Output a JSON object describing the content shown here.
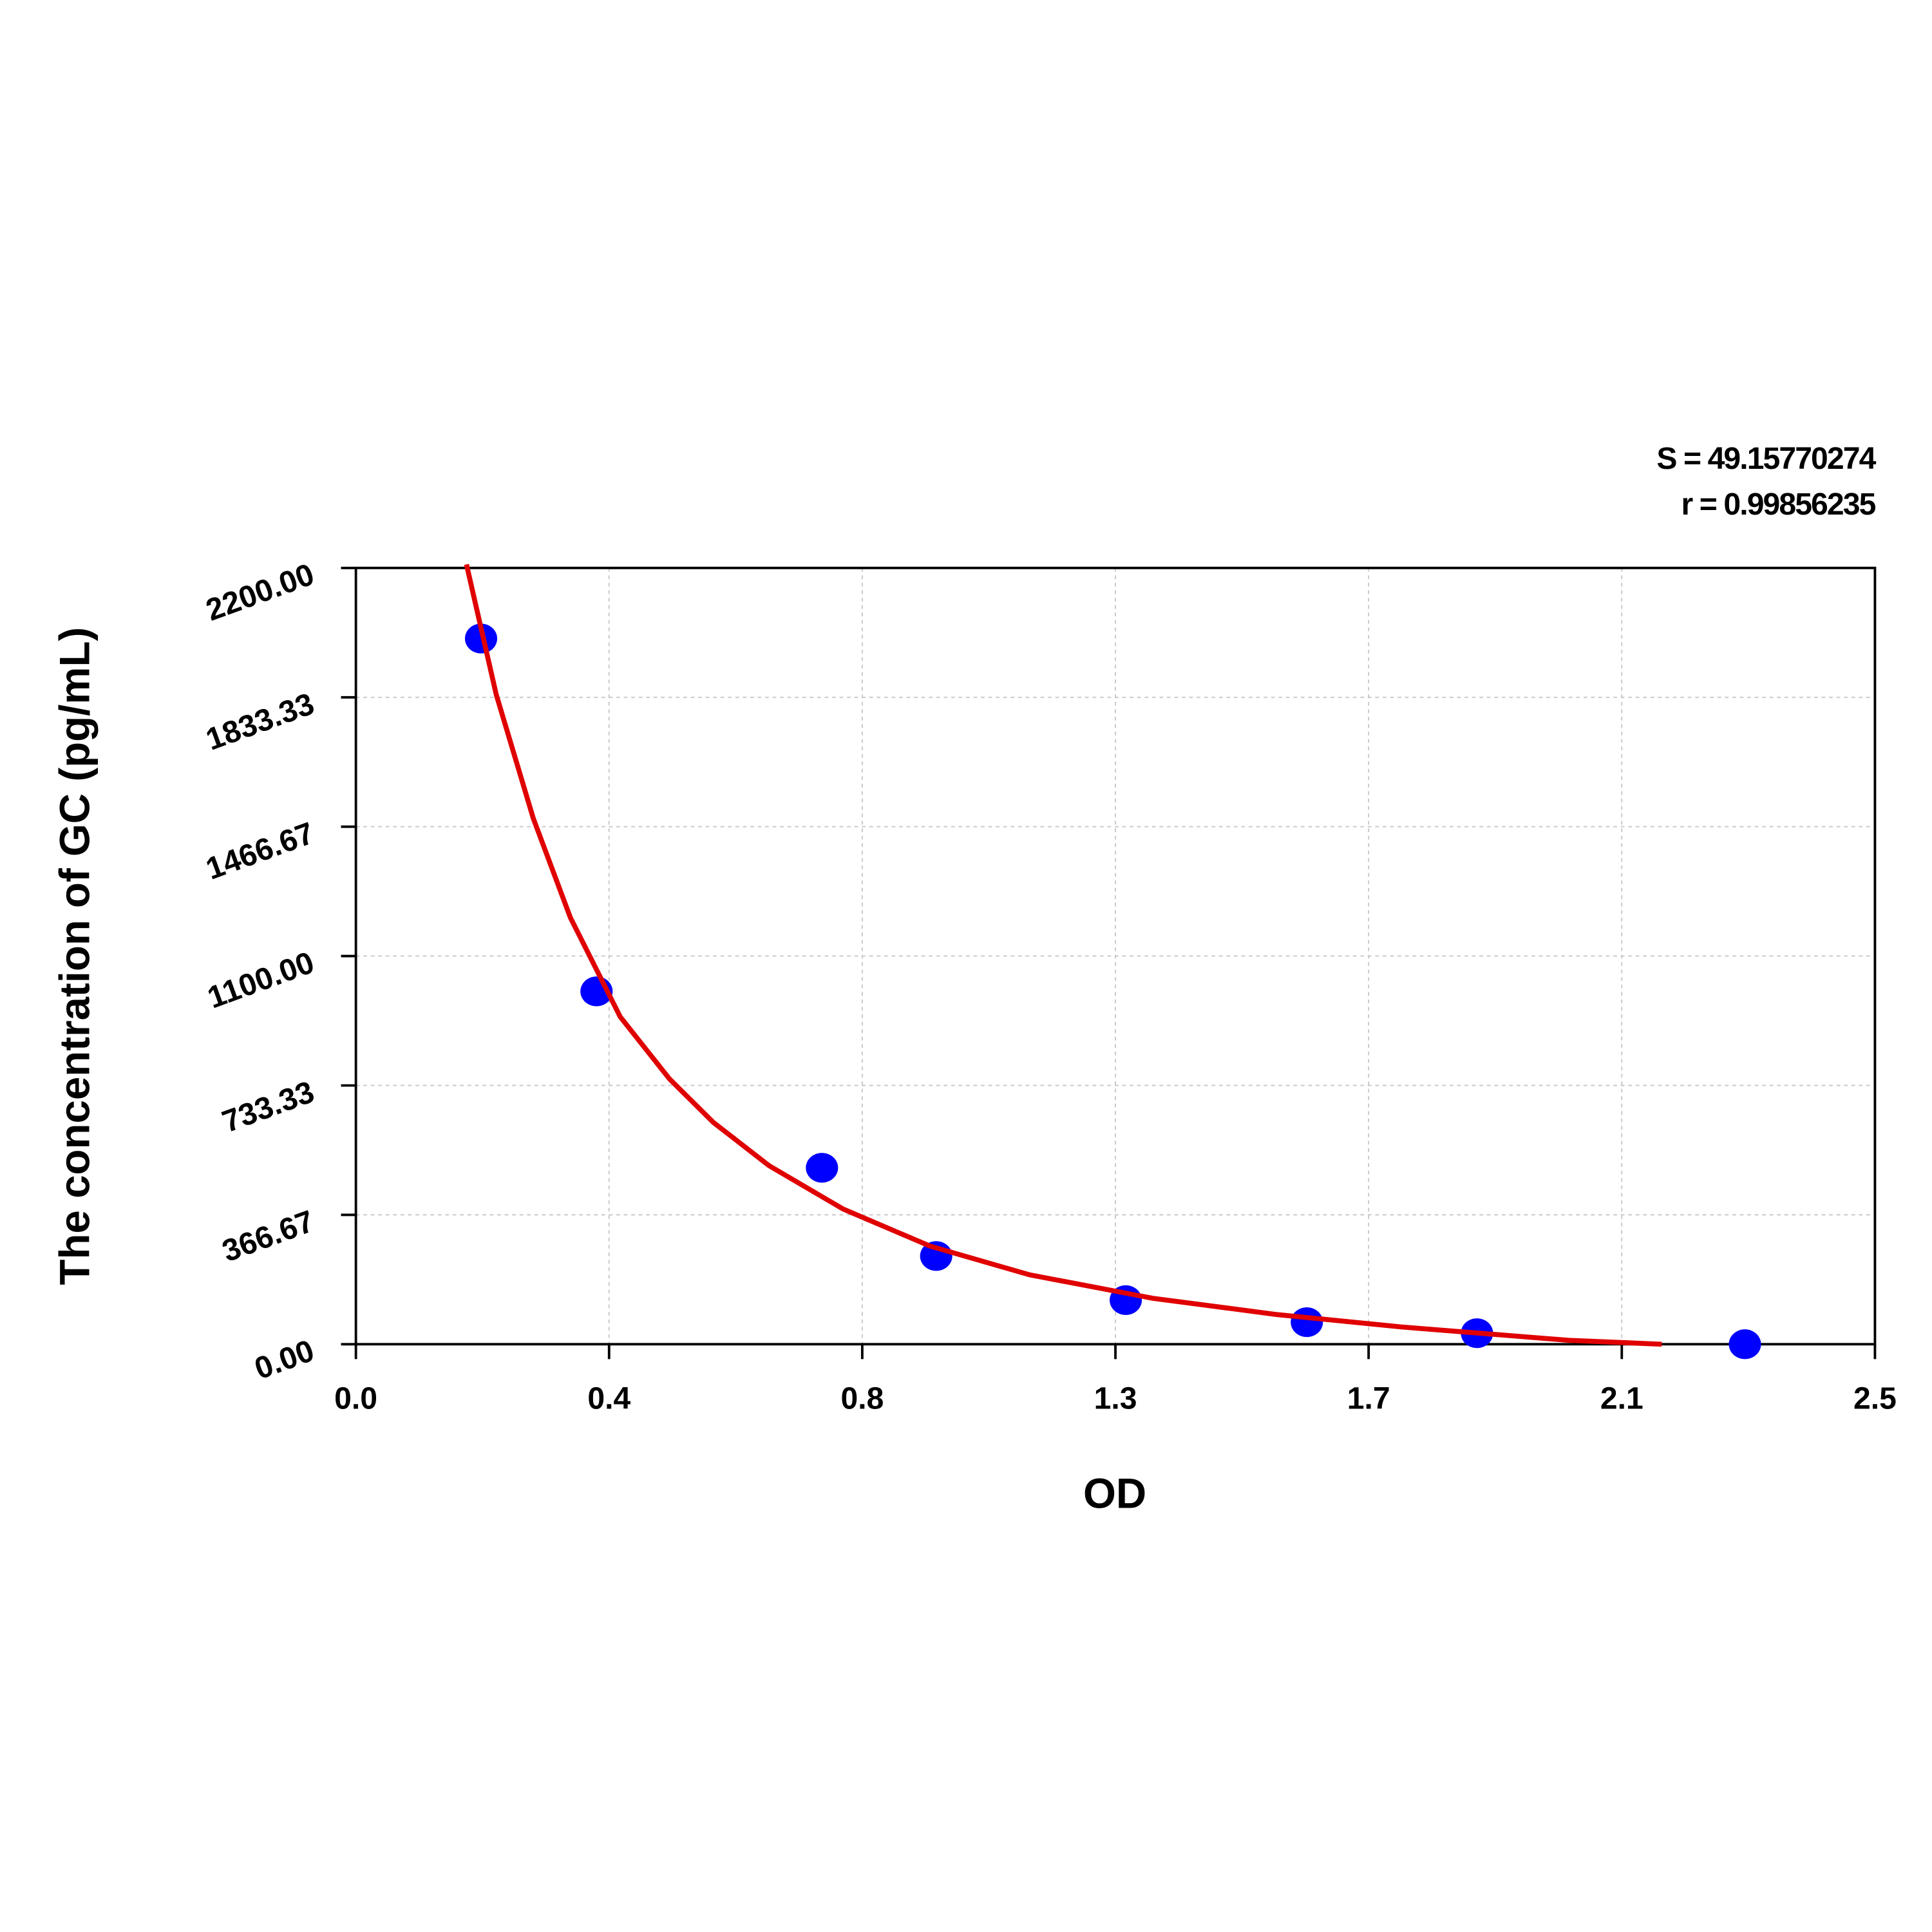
{
  "chart_data": {
    "type": "scatter",
    "stats": [
      "S = 49.15770274",
      "r = 0.99856235"
    ],
    "x_label": "OD",
    "y_label": "The concentration of GC (pg/mL)",
    "xlim": [
      0,
      2.5
    ],
    "ylim": [
      0,
      2200
    ],
    "xticks": [
      {
        "value": 0,
        "label": "0.0"
      },
      {
        "value": 0.41667,
        "label": "0.4"
      },
      {
        "value": 0.83333,
        "label": "0.8"
      },
      {
        "value": 1.25,
        "label": "1.3"
      },
      {
        "value": 1.66667,
        "label": "1.7"
      },
      {
        "value": 2.08333,
        "label": "2.1"
      },
      2.5
    ],
    "yticks": [
      {
        "value": 0,
        "label": "0.00"
      },
      366.67,
      733.33,
      {
        "value": 1100,
        "label": "1100.00"
      },
      1466.67,
      1833.33,
      {
        "value": 2200,
        "label": "2200.00"
      }
    ],
    "grid": true,
    "series": [
      {
        "style": "markers",
        "color": "#0000ff",
        "x": [
          0.206,
          0.396,
          0.767,
          0.955,
          1.267,
          1.565,
          1.845,
          2.286
        ],
        "values": [
          2000,
          1000,
          500,
          250,
          125,
          62.5,
          31.25,
          0
        ]
      },
      {
        "style": "line",
        "color": "#e00000",
        "x": [
          0.182,
          0.231,
          0.292,
          0.353,
          0.435,
          0.516,
          0.588,
          0.68,
          0.802,
          0.945,
          1.108,
          1.312,
          1.516,
          1.72,
          1.924,
          1.996,
          2.149
        ],
        "values": [
          2210,
          1841,
          1490,
          1209,
          928,
          752,
          629,
          506,
          383,
          278,
          197,
          130,
          84,
          49,
          21,
          11,
          0
        ]
      }
    ]
  }
}
